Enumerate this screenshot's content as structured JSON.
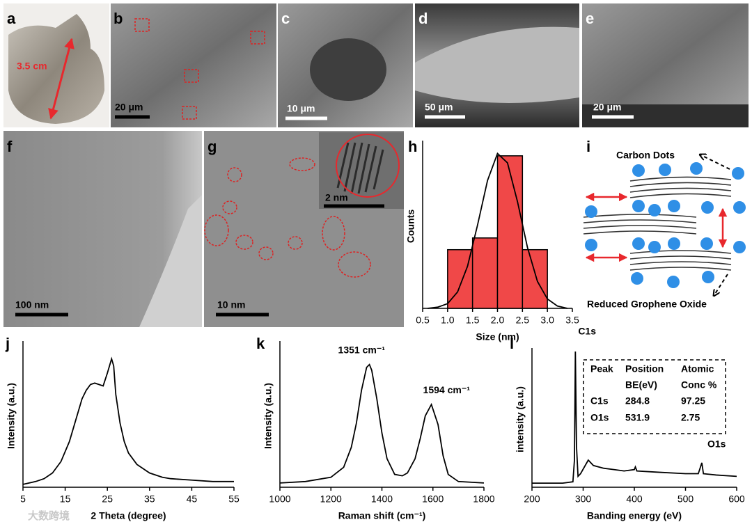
{
  "panels": {
    "a": {
      "letter": "a",
      "scale": "3.5 cm"
    },
    "b": {
      "letter": "b",
      "scale": "20 μm"
    },
    "c": {
      "letter": "c",
      "scale": "10 μm"
    },
    "d": {
      "letter": "d",
      "scale": "50 μm"
    },
    "e": {
      "letter": "e",
      "scale": "20 μm"
    },
    "f": {
      "letter": "f",
      "scale": "100  nm"
    },
    "g": {
      "letter": "g",
      "scale": "10  nm",
      "inset_scale": "2 nm"
    },
    "i": {
      "letter": "i",
      "top_label": "Carbon Dots",
      "bottom_label": "Reduced Grophene Oxide"
    }
  },
  "watermark": "大数跨境",
  "chart_data": [
    {
      "type": "histogram",
      "letter": "h",
      "x_label": "Size (nm)",
      "y_label": "Counts",
      "color": "#f04848",
      "bins": [
        1.0,
        1.5,
        2.0,
        2.5,
        3.0
      ],
      "values": [
        5,
        6,
        13,
        5
      ],
      "curve": {
        "x": [
          0.6,
          0.8,
          1.0,
          1.2,
          1.4,
          1.6,
          1.8,
          2.0,
          2.2,
          2.4,
          2.6,
          2.8,
          3.0,
          3.2,
          3.4
        ],
        "values": [
          0.0,
          0.1,
          0.4,
          1.4,
          3.6,
          7.1,
          10.9,
          13.2,
          12.4,
          9.1,
          5.2,
          2.3,
          0.8,
          0.2,
          0.0
        ]
      },
      "xlim": [
        0.5,
        3.5
      ],
      "ylim": [
        0,
        14
      ],
      "xticks": [
        0.5,
        {
          "value": 1,
          "label": "1.0"
        },
        1.5,
        {
          "value": 2,
          "label": "2.0"
        },
        2.5,
        {
          "value": 3,
          "label": "3.0"
        },
        3.5
      ]
    },
    {
      "type": "line",
      "letter": "j",
      "x_label": "2 Theta (degree)",
      "y_label": "Intensity (a.u.)",
      "color": "#000000",
      "x": [
        5,
        8,
        10,
        12,
        14,
        16,
        18,
        19,
        20,
        21,
        22,
        23,
        24,
        25,
        26,
        26.5,
        27,
        28,
        29,
        30,
        32,
        35,
        38,
        40,
        45,
        50,
        55
      ],
      "values": [
        2,
        4,
        6,
        10,
        18,
        32,
        52,
        62,
        68,
        72,
        73,
        72,
        71,
        80,
        90,
        85,
        65,
        45,
        32,
        24,
        16,
        10,
        7,
        6,
        5,
        4,
        4
      ],
      "xlim": [
        5,
        55
      ],
      "ylim": [
        0,
        100
      ],
      "xticks": [
        5,
        15,
        25,
        35,
        45,
        55
      ]
    },
    {
      "type": "line",
      "letter": "k",
      "x_label": "Raman shift (cm⁻¹)",
      "y_label": "Intensity (a.u.)",
      "color": "#000000",
      "annotations": [
        "1351 cm⁻¹",
        "1594 cm⁻¹"
      ],
      "x": [
        1000,
        1100,
        1200,
        1250,
        1280,
        1300,
        1320,
        1340,
        1351,
        1360,
        1380,
        1400,
        1420,
        1450,
        1480,
        1500,
        1530,
        1550,
        1570,
        1594,
        1620,
        1640,
        1660,
        1700,
        1800
      ],
      "values": [
        3,
        4,
        7,
        14,
        28,
        45,
        68,
        84,
        86,
        82,
        62,
        38,
        20,
        9,
        8,
        10,
        20,
        34,
        50,
        58,
        44,
        22,
        9,
        4,
        3
      ],
      "xlim": [
        1000,
        1800
      ],
      "ylim": [
        0,
        100
      ],
      "xticks": [
        1000,
        1200,
        1400,
        1600,
        1800
      ]
    },
    {
      "type": "line",
      "letter": "l",
      "x_label": "Banding energy (eV)",
      "y_label": "intensity (a.u.)",
      "color": "#000000",
      "annotations": [
        "C1s",
        "O1s"
      ],
      "table": {
        "header": [
          "Peak",
          "Position",
          "Atomic"
        ],
        "subheader": [
          "BE(eV)",
          "Conc %"
        ],
        "rows": [
          [
            "C1s",
            284.8,
            97.25
          ],
          [
            "O1s",
            531.9,
            2.75
          ]
        ]
      },
      "x": [
        200,
        260,
        280,
        283,
        284.8,
        287,
        290,
        295,
        310,
        320,
        340,
        360,
        380,
        400,
        402,
        405,
        450,
        500,
        525,
        531.9,
        535,
        560,
        600
      ],
      "values": [
        3,
        3,
        4,
        20,
        100,
        30,
        8,
        10,
        20,
        16,
        14,
        13,
        12,
        13,
        15,
        12,
        11,
        10,
        10,
        18,
        10,
        9,
        8
      ],
      "xlim": [
        200,
        600
      ],
      "ylim": [
        0,
        100
      ],
      "xticks": [
        200,
        300,
        400,
        500,
        600
      ]
    }
  ]
}
